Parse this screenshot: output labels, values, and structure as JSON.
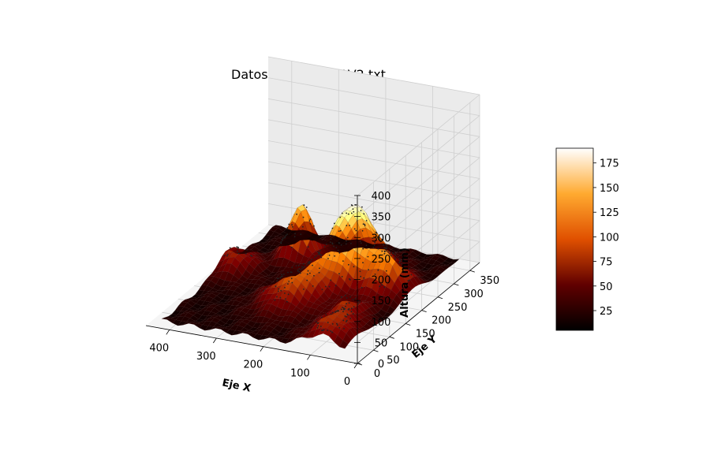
{
  "chart_data": {
    "type": "surface3d",
    "title": "Datos 20_5_26_B1V2.txt",
    "xlabel": "Eje X",
    "ylabel": "Eje Y",
    "zlabel": "Altura (mm)",
    "xlim": [
      0,
      450
    ],
    "ylim": [
      0,
      380
    ],
    "zlim": [
      0,
      400
    ],
    "x_ticks": [
      0,
      100,
      200,
      300,
      400
    ],
    "y_ticks": [
      0,
      50,
      100,
      150,
      200,
      250,
      300,
      350
    ],
    "z_ticks": [
      0,
      50,
      100,
      150,
      200,
      250,
      300,
      350,
      400
    ],
    "grid": true,
    "colormap": "afmhot",
    "colorbar": {
      "min": 5,
      "max": 190,
      "ticks": [
        25,
        50,
        75,
        100,
        125,
        150,
        175
      ]
    },
    "base_height": 15,
    "peaks": [
      {
        "x": 175,
        "y": 240,
        "height": 175,
        "spread": 40
      },
      {
        "x": 310,
        "y": 275,
        "height": 125,
        "spread": 22
      },
      {
        "x": 80,
        "y": 215,
        "height": 85,
        "spread": 30
      },
      {
        "x": 225,
        "y": 135,
        "height": 75,
        "spread": 40
      },
      {
        "x": 80,
        "y": 40,
        "height": 55,
        "spread": 35
      },
      {
        "x": 395,
        "y": 200,
        "height": 50,
        "spread": 30
      },
      {
        "x": 95,
        "y": 110,
        "height": 45,
        "spread": 25
      }
    ]
  }
}
